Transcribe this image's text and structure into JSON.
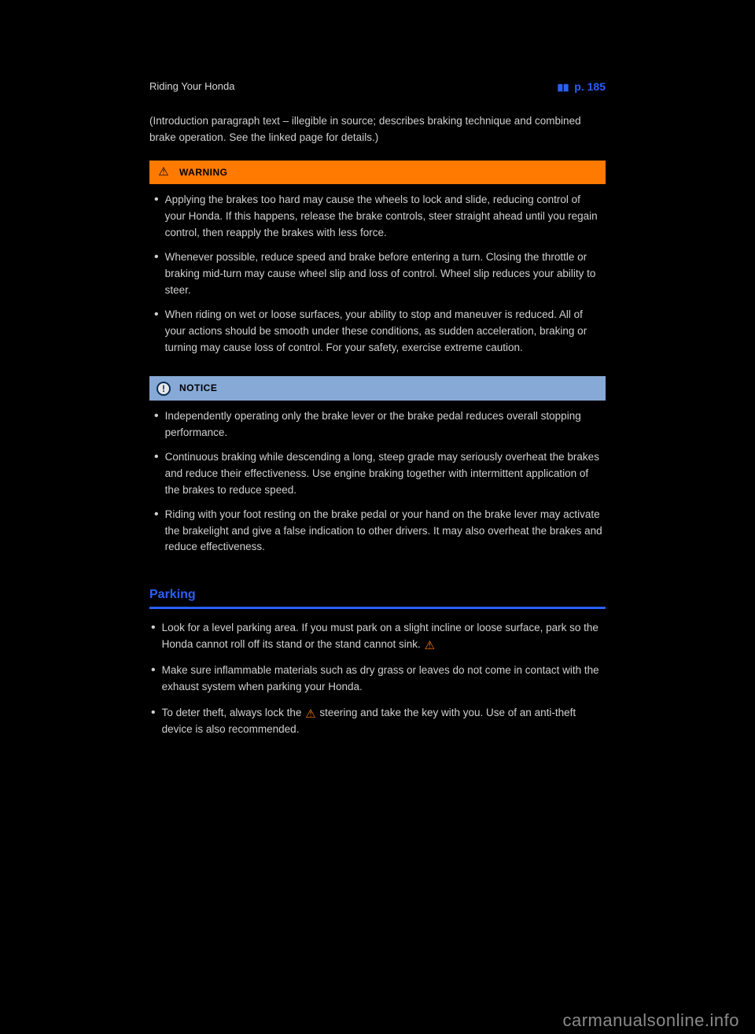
{
  "header": {
    "chapter": "Riding Your Honda",
    "page_link_label": "p. 185"
  },
  "intro": "(Introduction paragraph text – illegible in source; describes braking technique and combined brake operation. See the linked page for details.)",
  "warning": {
    "label": "WARNING",
    "items": [
      "Applying the brakes too hard may cause the wheels to lock and slide, reducing control of your Honda. If this happens, release the brake controls, steer straight ahead until you regain control, then reapply the brakes with less force.",
      "Whenever possible, reduce speed and brake before entering a turn. Closing the throttle or braking mid-turn may cause wheel slip and loss of control. Wheel slip reduces your ability to steer.",
      "When riding on wet or loose surfaces, your ability to stop and maneuver is reduced. All of your actions should be smooth under these conditions, as sudden acceleration, braking or turning may cause loss of control. For your safety, exercise extreme caution."
    ]
  },
  "notice": {
    "label": "NOTICE",
    "items": [
      "Independently operating only the brake lever or the brake pedal reduces overall stopping performance.",
      "Continuous braking while descending a long, steep grade may seriously overheat the brakes and reduce their effectiveness. Use engine braking together with intermittent application of the brakes to reduce speed.",
      "Riding with your foot resting on the brake pedal or your hand on the brake lever may activate the brakelight and give a false indication to other drivers. It may also overheat the brakes and reduce effectiveness."
    ]
  },
  "parking": {
    "heading": "Parking",
    "items": [
      {
        "text": "Look for a level parking area. If you must park on a slight incline or loose surface, park so the Honda cannot roll off its stand or the stand cannot sink.",
        "icon_after": true
      },
      {
        "text": "Make sure inflammable materials such as dry grass or leaves do not come in contact with the exhaust system when parking your Honda.",
        "icon_after": false
      },
      {
        "text": "To deter theft, always lock the steering and take the key with you. Use of an anti-theft device is also recommended.",
        "icon_after": true,
        "icon_mid_after_word": 6
      }
    ]
  },
  "watermark": "carmanualsonline.info",
  "colors": {
    "background": "#000000",
    "text": "#d0d0d0",
    "accent_blue": "#2a5fff",
    "warning_bg": "#ff7a00",
    "notice_bg": "#87a9d6",
    "notice_icon": "#0d2d57",
    "watermark": "#8a8a8a"
  }
}
